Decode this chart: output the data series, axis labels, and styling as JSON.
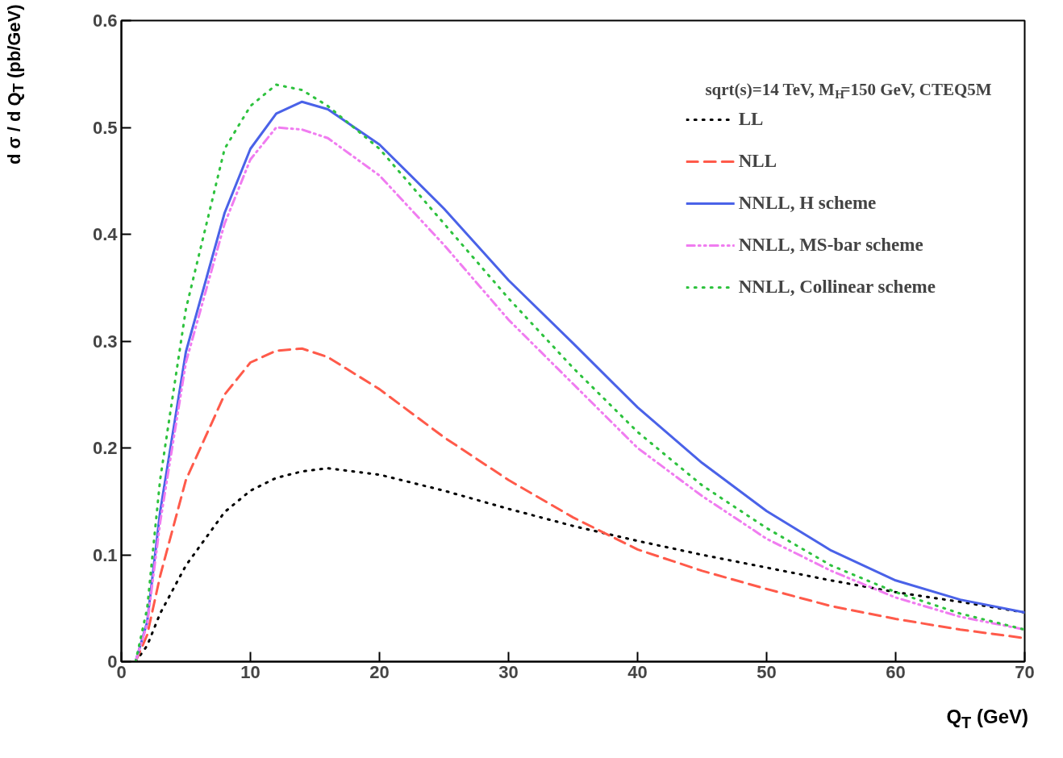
{
  "chart_data": {
    "type": "line",
    "xlabel": "Q$_{T}$ (GeV)",
    "ylabel": "d σ / d Q$_{T}$ (pb/GeV)",
    "annotations": [
      {
        "text": "sqrt(s)=14 TeV, M$_{H}$=150 GeV, CTEQ5M"
      }
    ],
    "xlim": [
      0,
      70
    ],
    "ylim": [
      0,
      0.6
    ],
    "xticks": [
      0,
      10,
      20,
      30,
      40,
      50,
      60,
      70
    ],
    "yticks": [
      0,
      0.1,
      0.2,
      0.3,
      0.4,
      0.5,
      0.6
    ],
    "legend": "top right",
    "grid": false,
    "x": [
      1.1,
      2,
      3,
      5,
      8,
      10,
      12,
      14,
      16,
      20,
      25,
      30,
      35,
      40,
      45,
      50,
      55,
      60,
      65,
      70
    ],
    "series": [
      {
        "name": "LL",
        "color": "#000000",
        "line_style": "dotted",
        "values": [
          0,
          0.015,
          0.045,
          0.09,
          0.14,
          0.16,
          0.172,
          0.178,
          0.181,
          0.175,
          0.16,
          0.143,
          0.127,
          0.113,
          0.1,
          0.088,
          0.076,
          0.065,
          0.056,
          0.046
        ]
      },
      {
        "name": "NLL",
        "color": "#ff5a4a",
        "line_style": "dashed",
        "values": [
          0,
          0.025,
          0.08,
          0.17,
          0.25,
          0.28,
          0.291,
          0.293,
          0.285,
          0.255,
          0.21,
          0.17,
          0.135,
          0.105,
          0.085,
          0.068,
          0.052,
          0.04,
          0.03,
          0.022
        ]
      },
      {
        "name": "NNLL, H scheme",
        "color": "#4a62e8",
        "line_style": "solid",
        "values": [
          0,
          0.037,
          0.14,
          0.29,
          0.42,
          0.48,
          0.513,
          0.524,
          0.517,
          0.484,
          0.424,
          0.357,
          0.298,
          0.238,
          0.186,
          0.141,
          0.104,
          0.076,
          0.058,
          0.046
        ]
      },
      {
        "name": "NNLL, MS-bar scheme",
        "color": "#f07cf0",
        "line_style": "dashdot",
        "values": [
          0,
          0.035,
          0.13,
          0.28,
          0.41,
          0.47,
          0.5,
          0.498,
          0.49,
          0.455,
          0.39,
          0.32,
          0.26,
          0.2,
          0.155,
          0.115,
          0.085,
          0.06,
          0.042,
          0.03
        ]
      },
      {
        "name": "NNLL, Collinear scheme",
        "color": "#2ec23e",
        "line_style": "dotted",
        "values": [
          0,
          0.05,
          0.17,
          0.33,
          0.48,
          0.52,
          0.54,
          0.535,
          0.52,
          0.48,
          0.41,
          0.34,
          0.275,
          0.215,
          0.165,
          0.125,
          0.09,
          0.065,
          0.045,
          0.03
        ]
      }
    ]
  }
}
